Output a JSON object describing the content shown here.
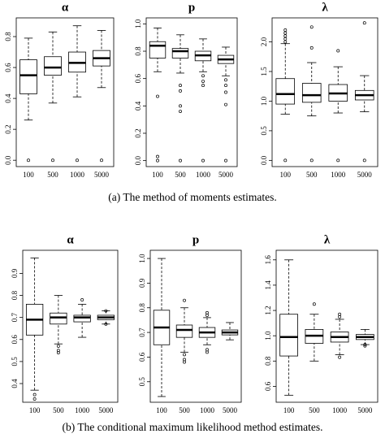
{
  "captions": [
    "(a) The method of moments estimates.",
    "(b) The conditional maximum likelihood method estimates."
  ],
  "chart_data": [
    {
      "type": "box",
      "title": "α",
      "categories": [
        "100",
        "500",
        "1000",
        "5000"
      ],
      "ylim": [
        -0.02,
        0.9
      ],
      "yticks": [
        {
          "value": 0,
          "label": "0.0"
        },
        {
          "value": 0.2,
          "label": "0.2"
        },
        {
          "value": 0.4,
          "label": "0.4"
        },
        {
          "value": 0.6,
          "label": "0.6"
        },
        {
          "value": 0.8,
          "label": "0.8"
        }
      ],
      "boxes": [
        {
          "min": 0.26,
          "q1": 0.43,
          "median": 0.55,
          "q3": 0.65,
          "max": 0.79,
          "outliers": [
            0.0
          ]
        },
        {
          "min": 0.37,
          "q1": 0.55,
          "median": 0.6,
          "q3": 0.67,
          "max": 0.83,
          "outliers": [
            0.0
          ]
        },
        {
          "min": 0.41,
          "q1": 0.57,
          "median": 0.63,
          "q3": 0.7,
          "max": 0.87,
          "outliers": [
            0.0
          ]
        },
        {
          "min": 0.47,
          "q1": 0.61,
          "median": 0.66,
          "q3": 0.71,
          "max": 0.84,
          "outliers": [
            0.0
          ]
        }
      ]
    },
    {
      "type": "box",
      "title": "p",
      "categories": [
        "100",
        "500",
        "1000",
        "5000"
      ],
      "ylim": [
        -0.02,
        1.02
      ],
      "yticks": [
        {
          "value": 0,
          "label": "0.0"
        },
        {
          "value": 0.2,
          "label": "0.2"
        },
        {
          "value": 0.4,
          "label": "0.4"
        },
        {
          "value": 0.6,
          "label": "0.6"
        },
        {
          "value": 0.8,
          "label": "0.8"
        },
        {
          "value": 1,
          "label": "1.0"
        }
      ],
      "boxes": [
        {
          "min": 0.65,
          "q1": 0.75,
          "median": 0.84,
          "q3": 0.87,
          "max": 0.97,
          "outliers": [
            0.47,
            0.03,
            0.0
          ]
        },
        {
          "min": 0.64,
          "q1": 0.75,
          "median": 0.8,
          "q3": 0.82,
          "max": 0.92,
          "outliers": [
            0.55,
            0.51,
            0.4,
            0.36,
            0.0
          ]
        },
        {
          "min": 0.65,
          "q1": 0.73,
          "median": 0.77,
          "q3": 0.8,
          "max": 0.89,
          "outliers": [
            0.62,
            0.58,
            0.55,
            0.0
          ]
        },
        {
          "min": 0.62,
          "q1": 0.71,
          "median": 0.74,
          "q3": 0.77,
          "max": 0.83,
          "outliers": [
            0.59,
            0.55,
            0.5,
            0.41,
            0.0
          ]
        }
      ]
    },
    {
      "type": "box",
      "title": "λ",
      "categories": [
        "100",
        "500",
        "1000",
        "5000"
      ],
      "ylim": [
        -0.05,
        2.35
      ],
      "yticks": [
        {
          "value": 0,
          "label": "0.0"
        },
        {
          "value": 0.5,
          "label": "0.5"
        },
        {
          "value": 1,
          "label": "1.0"
        },
        {
          "value": 1.5,
          "label": "1.5"
        },
        {
          "value": 2,
          "label": "2.0"
        }
      ],
      "boxes": [
        {
          "min": 0.78,
          "q1": 0.95,
          "median": 1.12,
          "q3": 1.38,
          "max": 1.97,
          "outliers": [
            2.0,
            2.05,
            2.1,
            2.15,
            2.2,
            0.0
          ]
        },
        {
          "min": 0.75,
          "q1": 0.98,
          "median": 1.1,
          "q3": 1.3,
          "max": 1.65,
          "outliers": [
            1.9,
            2.25,
            0.0
          ]
        },
        {
          "min": 0.8,
          "q1": 1.0,
          "median": 1.13,
          "q3": 1.28,
          "max": 1.58,
          "outliers": [
            1.85,
            0.0
          ]
        },
        {
          "min": 0.82,
          "q1": 1.02,
          "median": 1.1,
          "q3": 1.18,
          "max": 1.43,
          "outliers": [
            2.32,
            0.0
          ]
        }
      ]
    },
    {
      "type": "box",
      "title": "α",
      "categories": [
        "100",
        "500",
        "1000",
        "5000"
      ],
      "ylim": [
        0.33,
        0.99
      ],
      "yticks": [
        0.4,
        0.5,
        0.6,
        0.7,
        0.8,
        0.9
      ],
      "boxes": [
        {
          "min": 0.37,
          "q1": 0.62,
          "median": 0.69,
          "q3": 0.76,
          "max": 0.97,
          "outliers": [
            0.35,
            0.33
          ]
        },
        {
          "min": 0.58,
          "q1": 0.67,
          "median": 0.7,
          "q3": 0.72,
          "max": 0.8,
          "outliers": [
            0.57,
            0.55,
            0.54
          ]
        },
        {
          "min": 0.61,
          "q1": 0.68,
          "median": 0.7,
          "q3": 0.71,
          "max": 0.76,
          "outliers": [
            0.78
          ]
        },
        {
          "min": 0.67,
          "q1": 0.69,
          "median": 0.7,
          "q3": 0.71,
          "max": 0.73,
          "outliers": [
            0.73,
            0.67
          ]
        }
      ]
    },
    {
      "type": "box",
      "title": "p",
      "categories": [
        "100",
        "500",
        "1000",
        "5000"
      ],
      "ylim": [
        0.43,
        1.02
      ],
      "yticks": [
        0.5,
        0.6,
        0.7,
        0.8,
        0.9,
        {
          "value": 1,
          "label": "1.0"
        }
      ],
      "boxes": [
        {
          "min": 0.44,
          "q1": 0.65,
          "median": 0.72,
          "q3": 0.79,
          "max": 1.0,
          "outliers": []
        },
        {
          "min": 0.62,
          "q1": 0.68,
          "median": 0.71,
          "q3": 0.73,
          "max": 0.8,
          "outliers": [
            0.83,
            0.61,
            0.59,
            0.58
          ]
        },
        {
          "min": 0.65,
          "q1": 0.68,
          "median": 0.7,
          "q3": 0.72,
          "max": 0.76,
          "outliers": [
            0.78,
            0.77,
            0.63,
            0.62
          ]
        },
        {
          "min": 0.67,
          "q1": 0.69,
          "median": 0.7,
          "q3": 0.71,
          "max": 0.74,
          "outliers": []
        }
      ]
    },
    {
      "type": "box",
      "title": "λ",
      "categories": [
        "100",
        "500",
        "1000",
        "5000"
      ],
      "ylim": [
        0.5,
        1.65
      ],
      "yticks": [
        0.6,
        0.8,
        {
          "value": 1,
          "label": "1.0"
        },
        1.2,
        1.4,
        1.6
      ],
      "boxes": [
        {
          "min": 0.53,
          "q1": 0.84,
          "median": 0.99,
          "q3": 1.17,
          "max": 1.6,
          "outliers": []
        },
        {
          "min": 0.8,
          "q1": 0.94,
          "median": 1.0,
          "q3": 1.05,
          "max": 1.17,
          "outliers": [
            1.25
          ]
        },
        {
          "min": 0.85,
          "q1": 0.95,
          "median": 0.99,
          "q3": 1.03,
          "max": 1.13,
          "outliers": [
            1.15,
            1.17,
            0.83
          ]
        },
        {
          "min": 0.93,
          "q1": 0.97,
          "median": 0.99,
          "q3": 1.01,
          "max": 1.05,
          "outliers": [
            0.93,
            0.92
          ]
        }
      ]
    }
  ]
}
